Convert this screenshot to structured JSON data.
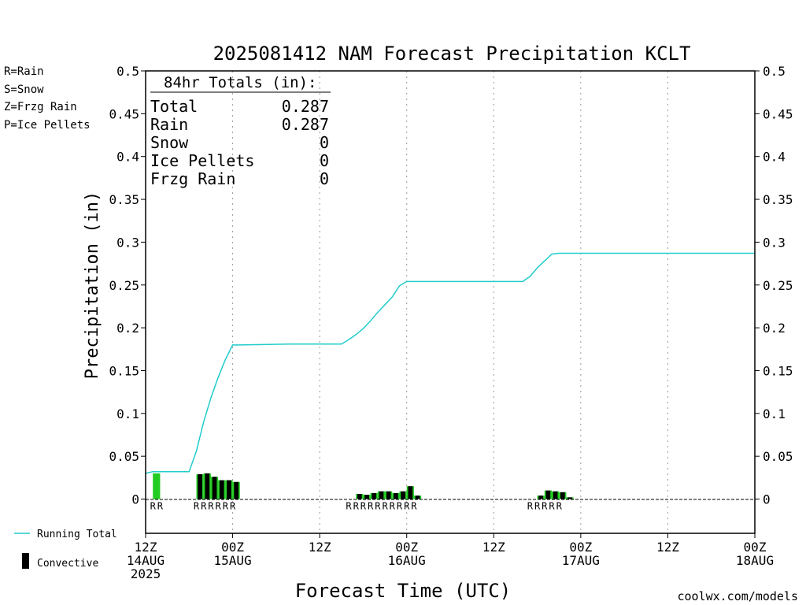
{
  "chart_data": {
    "type": "bar",
    "title": "2025081412 NAM Forecast Precipitation KCLT",
    "xlabel": "Forecast Time (UTC)",
    "ylabel": "Precipitation (in)",
    "ylim": [
      0,
      0.5
    ],
    "y_range_drawn": [
      -0.04,
      0.5
    ],
    "yticks": [
      "0",
      "0.05",
      "0.1",
      "0.15",
      "0.2",
      "0.25",
      "0.3",
      "0.35",
      "0.4",
      "0.45",
      "0.5"
    ],
    "y_tick_values": [
      0,
      0.05,
      0.1,
      0.15,
      0.2,
      0.25,
      0.3,
      0.35,
      0.4,
      0.45,
      0.5
    ],
    "x_range_hours": [
      0,
      84
    ],
    "x_ticks": [
      {
        "hour": 0,
        "lines": [
          "12Z",
          "14AUG",
          "2025"
        ]
      },
      {
        "hour": 12,
        "lines": [
          "00Z",
          "15AUG"
        ]
      },
      {
        "hour": 24,
        "lines": [
          "12Z"
        ]
      },
      {
        "hour": 36,
        "lines": [
          "00Z",
          "16AUG"
        ]
      },
      {
        "hour": 48,
        "lines": [
          "12Z"
        ]
      },
      {
        "hour": 60,
        "lines": [
          "00Z",
          "17AUG"
        ]
      },
      {
        "hour": 72,
        "lines": [
          "12Z"
        ]
      },
      {
        "hour": 84,
        "lines": [
          "00Z",
          "18AUG"
        ]
      }
    ],
    "grid": "vertical dotted lines at 12-hour ticks",
    "legend": {
      "ptype_items": [
        {
          "text": "R=Rain",
          "color": "#22cc22"
        },
        {
          "text": "S=Snow",
          "color": "#3355ff"
        },
        {
          "text": "Z=Frzg Rain",
          "color": "#ee8833"
        },
        {
          "text": "P=Ice Pellets",
          "color": "#ee2299"
        }
      ],
      "running_total_label": "Running Total",
      "convective_label": "Convective"
    },
    "totals_box": {
      "header": "84hr Totals (in):",
      "rows": [
        {
          "label": "Total",
          "value": "0.287"
        },
        {
          "label": "Rain",
          "value": "0.287"
        },
        {
          "label": "Snow",
          "value": "0"
        },
        {
          "label": "Ice Pellets",
          "value": "0"
        },
        {
          "label": "Frzg Rain",
          "value": "0"
        }
      ]
    },
    "bars": [
      {
        "hour": 1.5,
        "total": 0.03,
        "convective": 0.0
      },
      {
        "hour": 7.5,
        "total": 0.029,
        "convective": 0.029
      },
      {
        "hour": 8.5,
        "total": 0.03,
        "convective": 0.03
      },
      {
        "hour": 9.5,
        "total": 0.026,
        "convective": 0.026
      },
      {
        "hour": 10.5,
        "total": 0.022,
        "convective": 0.022
      },
      {
        "hour": 11.5,
        "total": 0.022,
        "convective": 0.022
      },
      {
        "hour": 12.5,
        "total": 0.02,
        "convective": 0.02
      },
      {
        "hour": 29.5,
        "total": 0.006,
        "convective": 0.006
      },
      {
        "hour": 30.5,
        "total": 0.005,
        "convective": 0.005
      },
      {
        "hour": 31.5,
        "total": 0.007,
        "convective": 0.007
      },
      {
        "hour": 32.5,
        "total": 0.009,
        "convective": 0.009
      },
      {
        "hour": 33.5,
        "total": 0.009,
        "convective": 0.009
      },
      {
        "hour": 34.5,
        "total": 0.007,
        "convective": 0.007
      },
      {
        "hour": 35.5,
        "total": 0.009,
        "convective": 0.009
      },
      {
        "hour": 36.5,
        "total": 0.015,
        "convective": 0.015
      },
      {
        "hour": 37.5,
        "total": 0.004,
        "convective": 0.004
      },
      {
        "hour": 54.5,
        "total": 0.004,
        "convective": 0.004
      },
      {
        "hour": 55.5,
        "total": 0.01,
        "convective": 0.01
      },
      {
        "hour": 56.5,
        "total": 0.009,
        "convective": 0.009
      },
      {
        "hour": 57.5,
        "total": 0.008,
        "convective": 0.008
      },
      {
        "hour": 58.5,
        "total": 0.002,
        "convective": 0.002
      }
    ],
    "ptype_labels": [
      {
        "hour": 1.0,
        "text": "R"
      },
      {
        "hour": 2.0,
        "text": "R"
      },
      {
        "hour": 7.0,
        "text": "R"
      },
      {
        "hour": 8.0,
        "text": "R"
      },
      {
        "hour": 9.0,
        "text": "R"
      },
      {
        "hour": 10.0,
        "text": "R"
      },
      {
        "hour": 11.0,
        "text": "R"
      },
      {
        "hour": 12.0,
        "text": "R"
      },
      {
        "hour": 28.0,
        "text": "R"
      },
      {
        "hour": 29.0,
        "text": "R"
      },
      {
        "hour": 30.0,
        "text": "R"
      },
      {
        "hour": 31.0,
        "text": "R"
      },
      {
        "hour": 32.0,
        "text": "R"
      },
      {
        "hour": 33.0,
        "text": "R"
      },
      {
        "hour": 34.0,
        "text": "R"
      },
      {
        "hour": 35.0,
        "text": "R"
      },
      {
        "hour": 36.0,
        "text": "R"
      },
      {
        "hour": 37.0,
        "text": "R"
      },
      {
        "hour": 53.0,
        "text": "R"
      },
      {
        "hour": 54.0,
        "text": "R"
      },
      {
        "hour": 55.0,
        "text": "R"
      },
      {
        "hour": 56.0,
        "text": "R"
      },
      {
        "hour": 57.0,
        "text": "R"
      }
    ],
    "running_total": {
      "name": "Running Total",
      "x": [
        0,
        1,
        6,
        7,
        8,
        9,
        10,
        11,
        12,
        13,
        20,
        27,
        28,
        29,
        30,
        31,
        32,
        33,
        34,
        35,
        36,
        37,
        52,
        53,
        54,
        55,
        56,
        57,
        84
      ],
      "y": [
        0.03,
        0.032,
        0.032,
        0.056,
        0.09,
        0.118,
        0.142,
        0.163,
        0.18,
        0.18,
        0.181,
        0.181,
        0.186,
        0.192,
        0.199,
        0.208,
        0.218,
        0.227,
        0.236,
        0.249,
        0.254,
        0.254,
        0.254,
        0.26,
        0.27,
        0.278,
        0.286,
        0.287,
        0.287
      ]
    },
    "colors": {
      "rain": "#22cc22",
      "convective": "#000000",
      "running_total": "#22cccc",
      "axis": "#000000",
      "grid": "#999999",
      "footer": "#dd2222"
    },
    "footer": "coolwx.com/models"
  }
}
